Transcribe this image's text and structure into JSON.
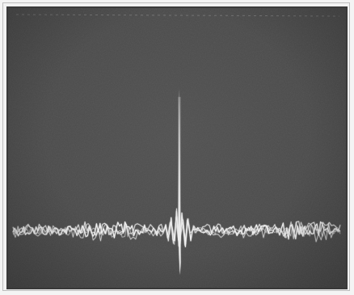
{
  "image": {
    "kind": "oscilloscope-screen-photo",
    "colors": {
      "screen_background": "#4a4a4a",
      "trace": "#f2f2f2",
      "page_background": "#f4f4f4",
      "frame": "#3a3a3a"
    }
  }
}
